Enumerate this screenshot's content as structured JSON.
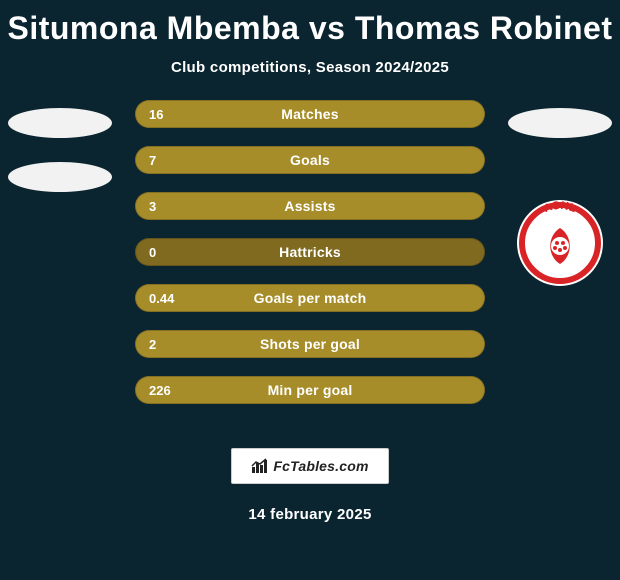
{
  "title": "Situmona Mbemba vs Thomas Robinet",
  "subtitle": "Club competitions, Season 2024/2025",
  "date": "14 february 2025",
  "branding": {
    "site": "FcTables.com"
  },
  "colors": {
    "background": "#0a2530",
    "bar_fill": "#a78d2a",
    "bar_track": "#7f6a20",
    "left_oval": "#f2f2f2",
    "right_oval": "#f2f2f2",
    "badge_bg": "#ffffff",
    "badge_ring": "#d92427",
    "badge_text": "#d92427"
  },
  "left_player": {
    "ovals": 2
  },
  "right_player": {
    "ovals": 1,
    "club_badge_label": "ASNL"
  },
  "stats": [
    {
      "label": "Matches",
      "left_value": "16",
      "fill_pct": 100
    },
    {
      "label": "Goals",
      "left_value": "7",
      "fill_pct": 100
    },
    {
      "label": "Assists",
      "left_value": "3",
      "fill_pct": 100
    },
    {
      "label": "Hattricks",
      "left_value": "0",
      "fill_pct": 0
    },
    {
      "label": "Goals per match",
      "left_value": "0.44",
      "fill_pct": 100
    },
    {
      "label": "Shots per goal",
      "left_value": "2",
      "fill_pct": 100
    },
    {
      "label": "Min per goal",
      "left_value": "226",
      "fill_pct": 100
    }
  ]
}
